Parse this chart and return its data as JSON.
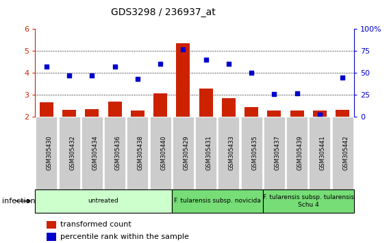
{
  "title": "GDS3298 / 236937_at",
  "categories": [
    "GSM305430",
    "GSM305432",
    "GSM305434",
    "GSM305436",
    "GSM305438",
    "GSM305440",
    "GSM305429",
    "GSM305431",
    "GSM305433",
    "GSM305435",
    "GSM305437",
    "GSM305439",
    "GSM305441",
    "GSM305442"
  ],
  "bar_values": [
    2.65,
    2.32,
    2.35,
    2.68,
    2.28,
    3.05,
    5.35,
    3.28,
    2.85,
    2.45,
    2.28,
    2.28,
    2.28,
    2.32
  ],
  "dot_values_pct": [
    57,
    47,
    47,
    57,
    43,
    60,
    77,
    65,
    60,
    50,
    26,
    27,
    2,
    45
  ],
  "bar_color": "#cc2200",
  "dot_color": "#0000cc",
  "ylim_left": [
    2,
    6
  ],
  "ylim_right": [
    0,
    100
  ],
  "yticks_left": [
    2,
    3,
    4,
    5,
    6
  ],
  "yticks_right": [
    0,
    25,
    50,
    75,
    100
  ],
  "ytick_labels_right": [
    "0",
    "25",
    "50",
    "75",
    "100%"
  ],
  "grid_yticks": [
    3,
    4,
    5
  ],
  "groups": [
    {
      "label": "untreated",
      "start": 0,
      "end": 5,
      "color": "#ccffcc"
    },
    {
      "label": "F. tularensis subsp. novicida",
      "start": 6,
      "end": 9,
      "color": "#77dd77"
    },
    {
      "label": "F. tularensis subsp. tularensis\nSchu 4",
      "start": 10,
      "end": 13,
      "color": "#77dd77"
    }
  ],
  "infection_label": "infection",
  "legend_bar_label": "transformed count",
  "legend_dot_label": "percentile rank within the sample",
  "bar_bottom": 2.0,
  "plot_bg_color": "#ffffff",
  "xticklabel_bg": "#dddddd"
}
